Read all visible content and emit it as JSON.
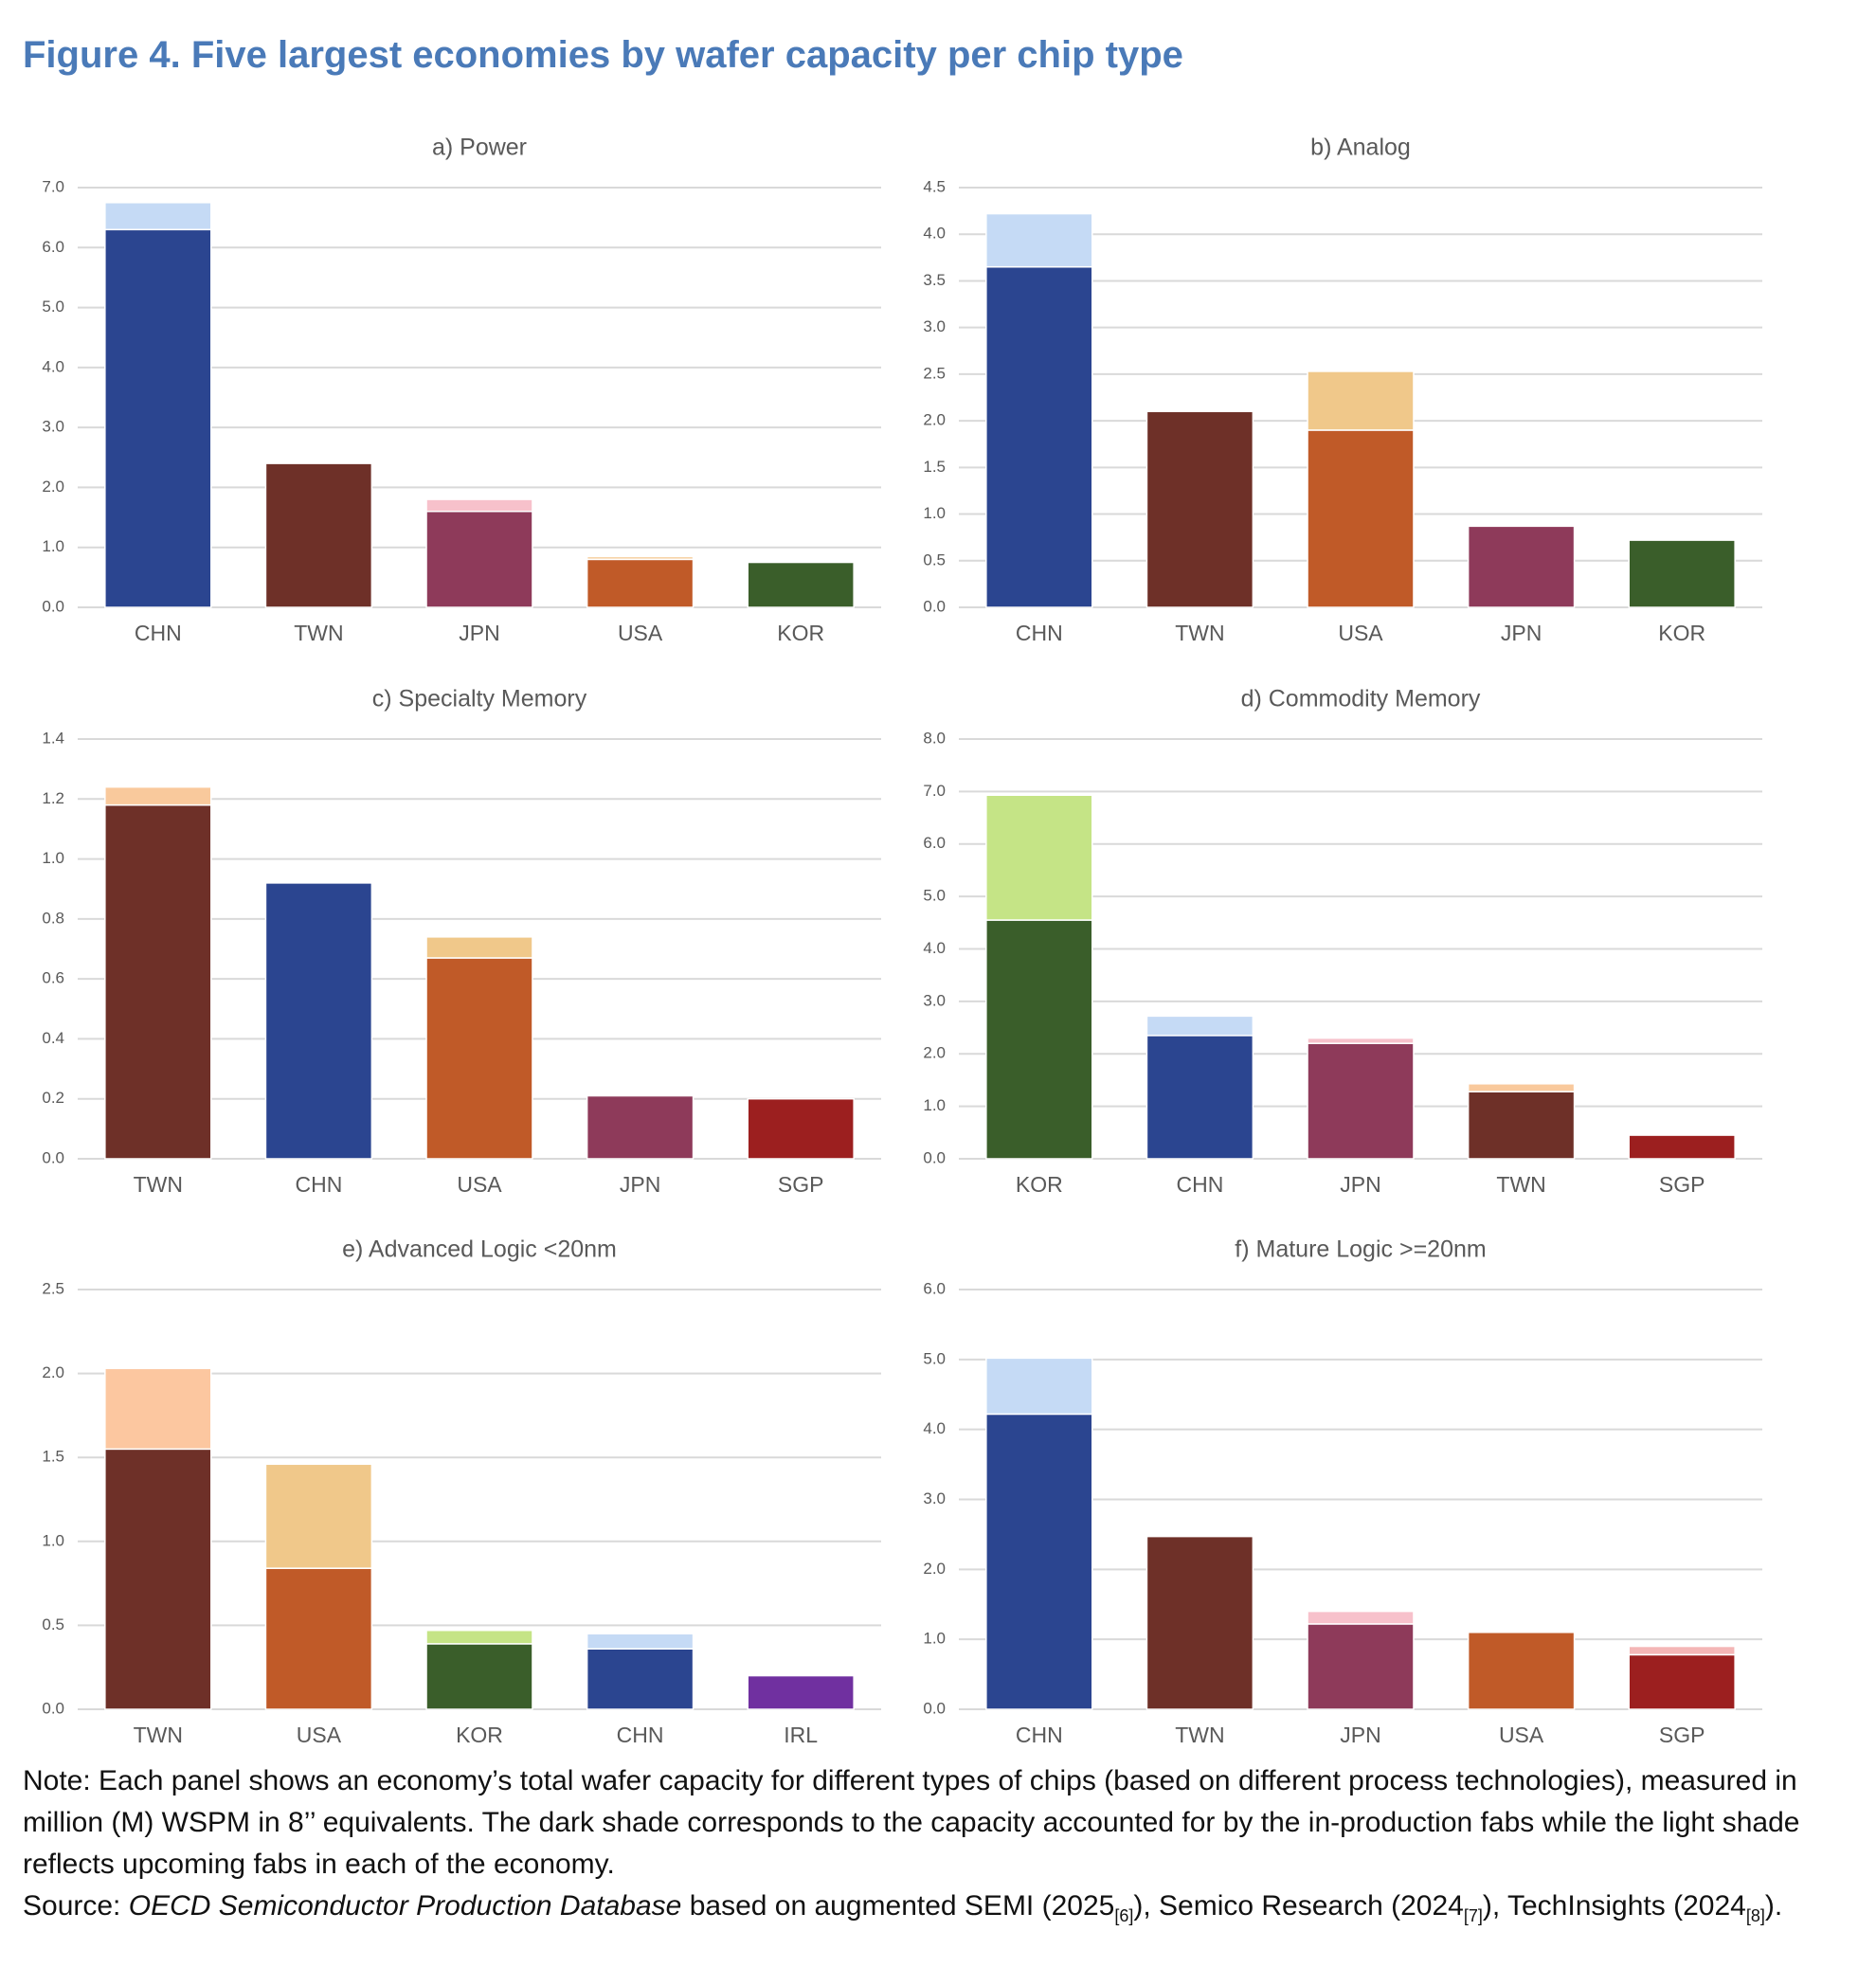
{
  "title": "Figure 4. Five largest economies by wafer capacity per chip type",
  "chart_data": [
    {
      "type": "bar",
      "stacked": true,
      "title": "a) Power",
      "grid": true,
      "categories": [
        "CHN",
        "TWN",
        "JPN",
        "USA",
        "KOR"
      ],
      "series": [
        {
          "values": [
            6.3,
            2.4,
            1.6,
            0.8,
            0.75
          ],
          "colors": [
            "#2b4590",
            "#6e3028",
            "#8e3a5a",
            "#c05a28",
            "#3a5e2a"
          ]
        },
        {
          "values": [
            0.45,
            null,
            0.2,
            0.05,
            null
          ],
          "colors": [
            "#c5daf5",
            null,
            "#f7c1cb",
            "#f6d3a8",
            null
          ]
        }
      ],
      "ylim": [
        0,
        7
      ],
      "yticks": [
        {
          "value": 0,
          "label": "0.0"
        },
        {
          "value": 1,
          "label": "1.0"
        },
        {
          "value": 2,
          "label": "2.0"
        },
        {
          "value": 3,
          "label": "3.0"
        },
        {
          "value": 4,
          "label": "4.0"
        },
        {
          "value": 5,
          "label": "5.0"
        },
        {
          "value": 6,
          "label": "6.0"
        },
        {
          "value": 7,
          "label": "7.0"
        }
      ]
    },
    {
      "type": "bar",
      "stacked": true,
      "title": "b) Analog",
      "grid": true,
      "categories": [
        "CHN",
        "TWN",
        "USA",
        "JPN",
        "KOR"
      ],
      "series": [
        {
          "values": [
            3.65,
            2.1,
            1.9,
            0.87,
            0.72
          ],
          "colors": [
            "#2b4590",
            "#6e3028",
            "#c05a28",
            "#8e3a5a",
            "#3a5e2a"
          ]
        },
        {
          "values": [
            0.57,
            null,
            0.63,
            null,
            null
          ],
          "colors": [
            "#c5daf5",
            null,
            "#f0c88a",
            null,
            null
          ]
        }
      ],
      "ylim": [
        0,
        4.5
      ],
      "yticks": [
        {
          "value": 0,
          "label": "0.0"
        },
        0.5,
        {
          "value": 1,
          "label": "1.0"
        },
        1.5,
        {
          "value": 2,
          "label": "2.0"
        },
        2.5,
        {
          "value": 3,
          "label": "3.0"
        },
        3.5,
        {
          "value": 4,
          "label": "4.0"
        },
        4.5
      ]
    },
    {
      "type": "bar",
      "stacked": true,
      "title": "c) Specialty Memory",
      "grid": true,
      "categories": [
        "TWN",
        "CHN",
        "USA",
        "JPN",
        "SGP"
      ],
      "series": [
        {
          "values": [
            1.18,
            0.92,
            0.67,
            0.21,
            0.2
          ],
          "colors": [
            "#6e3028",
            "#2b4590",
            "#c05a28",
            "#8e3a5a",
            "#9c1f1f"
          ]
        },
        {
          "values": [
            0.06,
            null,
            0.07,
            null,
            null
          ],
          "colors": [
            "#f9c99c",
            null,
            "#f0c88a",
            null,
            null
          ]
        }
      ],
      "ylim": [
        0,
        1.4
      ],
      "yticks": [
        {
          "value": 0,
          "label": "0.0"
        },
        0.2,
        0.4,
        0.6,
        0.8,
        {
          "value": 1,
          "label": "1.0"
        },
        1.2,
        1.4
      ]
    },
    {
      "type": "bar",
      "stacked": true,
      "title": "d) Commodity Memory",
      "grid": true,
      "categories": [
        "KOR",
        "CHN",
        "JPN",
        "TWN",
        "SGP"
      ],
      "series": [
        {
          "values": [
            4.55,
            2.35,
            2.2,
            1.28,
            0.45
          ],
          "colors": [
            "#3a5e2a",
            "#2b4590",
            "#8e3a5a",
            "#6e3028",
            "#9c1f1f"
          ]
        },
        {
          "values": [
            2.38,
            0.37,
            0.1,
            0.15,
            null
          ],
          "colors": [
            "#c5e486",
            "#c5daf5",
            "#f7c1cb",
            "#f9c99c",
            null
          ]
        }
      ],
      "ylim": [
        0,
        8
      ],
      "yticks": [
        {
          "value": 0,
          "label": "0.0"
        },
        {
          "value": 1,
          "label": "1.0"
        },
        {
          "value": 2,
          "label": "2.0"
        },
        {
          "value": 3,
          "label": "3.0"
        },
        {
          "value": 4,
          "label": "4.0"
        },
        {
          "value": 5,
          "label": "5.0"
        },
        {
          "value": 6,
          "label": "6.0"
        },
        {
          "value": 7,
          "label": "7.0"
        },
        {
          "value": 8,
          "label": "8.0"
        }
      ]
    },
    {
      "type": "bar",
      "stacked": true,
      "title": "e) Advanced Logic <20nm",
      "grid": true,
      "categories": [
        "TWN",
        "USA",
        "KOR",
        "CHN",
        "IRL"
      ],
      "series": [
        {
          "values": [
            1.55,
            0.84,
            0.39,
            0.36,
            0.2
          ],
          "colors": [
            "#6e3028",
            "#c05a28",
            "#3a5e2a",
            "#2b4590",
            "#7030a0"
          ]
        },
        {
          "values": [
            0.48,
            0.62,
            0.08,
            0.09,
            null
          ],
          "colors": [
            "#fcc7a0",
            "#f0c88a",
            "#c5e486",
            "#c5daf5",
            null
          ]
        }
      ],
      "ylim": [
        0,
        2.5
      ],
      "yticks": [
        {
          "value": 0,
          "label": "0.0"
        },
        0.5,
        {
          "value": 1,
          "label": "1.0"
        },
        1.5,
        {
          "value": 2,
          "label": "2.0"
        },
        2.5
      ]
    },
    {
      "type": "bar",
      "stacked": true,
      "title": "f) Mature Logic >=20nm",
      "grid": true,
      "categories": [
        "CHN",
        "TWN",
        "JPN",
        "USA",
        "SGP"
      ],
      "series": [
        {
          "values": [
            4.22,
            2.47,
            1.22,
            1.1,
            0.78
          ],
          "colors": [
            "#2b4590",
            "#6e3028",
            "#8e3a5a",
            "#c05a28",
            "#9c1f1f"
          ]
        },
        {
          "values": [
            0.8,
            null,
            0.18,
            null,
            0.12
          ],
          "colors": [
            "#c5daf5",
            null,
            "#f7c1cb",
            null,
            "#f4b6b6"
          ]
        }
      ],
      "ylim": [
        0,
        6
      ],
      "yticks": [
        {
          "value": 0,
          "label": "0.0"
        },
        {
          "value": 1,
          "label": "1.0"
        },
        {
          "value": 2,
          "label": "2.0"
        },
        {
          "value": 3,
          "label": "3.0"
        },
        {
          "value": 4,
          "label": "4.0"
        },
        {
          "value": 5,
          "label": "5.0"
        },
        {
          "value": 6,
          "label": "6.0"
        }
      ]
    }
  ],
  "note": "Note: Each panel shows an economy’s total wafer capacity for different types of chips (based on different process technologies), measured in million (M) WSPM in 8’’ equivalents. The dark shade corresponds to the capacity accounted for by the in-production fabs while the light shade reflects upcoming fabs in each of the economy.",
  "source": [
    {
      "text": "Source: "
    },
    {
      "text": "OECD Semiconductor Production Database",
      "style": "italic"
    },
    {
      "text": " based on augmented SEMI (2025"
    },
    {
      "text": "[6]",
      "style": "sub"
    },
    {
      "text": "), Semico Research (2024"
    },
    {
      "text": "[7]",
      "style": "sub"
    },
    {
      "text": "), TechInsights (2024"
    },
    {
      "text": "[8]",
      "style": "sub"
    },
    {
      "text": ")."
    }
  ]
}
